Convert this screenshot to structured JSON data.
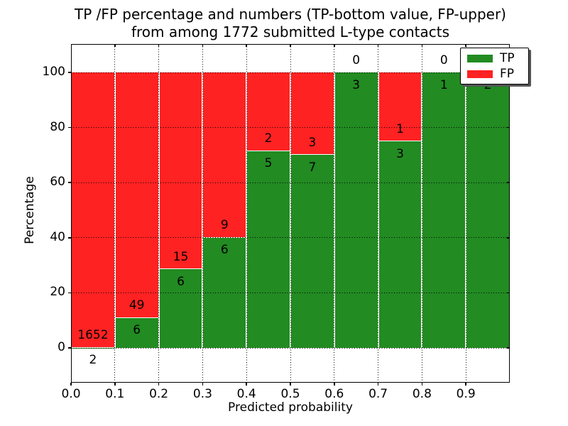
{
  "title": {
    "line1": "TP /FP percentage and numbers (TP-bottom value, FP-upper)",
    "line2": "from among 1772 submitted L-type contacts"
  },
  "axes": {
    "xlabel": "Predicted probability",
    "ylabel": "Percentage"
  },
  "legend": {
    "entries": [
      "TP",
      "FP"
    ],
    "position": "upper right"
  },
  "colors": {
    "tp_green": "#228b22",
    "fp_red": "#ff2222",
    "text": "#000000",
    "background": "#ffffff",
    "grid": "#000000"
  },
  "chart_data": {
    "type": "bar",
    "stacked": true,
    "normalized": "percent",
    "title": "TP /FP percentage and numbers (TP-bottom value, FP-upper) from among 1772 submitted L-type contacts",
    "xlabel": "Predicted probability",
    "ylabel": "Percentage",
    "total_contacts": 1772,
    "bins": [
      "0.0-0.1",
      "0.1-0.2",
      "0.2-0.3",
      "0.3-0.4",
      "0.4-0.5",
      "0.5-0.6",
      "0.6-0.7",
      "0.7-0.8",
      "0.8-0.9",
      "0.9-1.0"
    ],
    "series": [
      {
        "name": "TP",
        "color": "#228b22",
        "counts": [
          2,
          6,
          6,
          6,
          5,
          7,
          3,
          3,
          1,
          2
        ]
      },
      {
        "name": "FP",
        "color": "#ff2222",
        "counts": [
          1652,
          49,
          15,
          9,
          2,
          3,
          0,
          1,
          0,
          0
        ]
      }
    ],
    "tp_percent": [
      0.12,
      10.91,
      28.57,
      40.0,
      71.43,
      70.0,
      100.0,
      75.0,
      100.0,
      100.0
    ],
    "fp_labels": [
      "1652",
      "49",
      "15",
      "9",
      "2",
      "3",
      "0",
      "1",
      "0",
      null
    ],
    "tp_labels": [
      "2",
      "6",
      "6",
      "6",
      "5",
      "7",
      "3",
      "3",
      "1",
      "2"
    ],
    "xticks": [
      "0.0",
      "0.1",
      "0.2",
      "0.3",
      "0.4",
      "0.5",
      "0.6",
      "0.7",
      "0.8",
      "0.9"
    ],
    "yticks": [
      0,
      20,
      40,
      60,
      80,
      100
    ],
    "xlim": [
      0.0,
      1.0
    ],
    "ylim": [
      -12.6,
      110.3
    ],
    "grid": "dotted",
    "legend_position": "upper right"
  }
}
